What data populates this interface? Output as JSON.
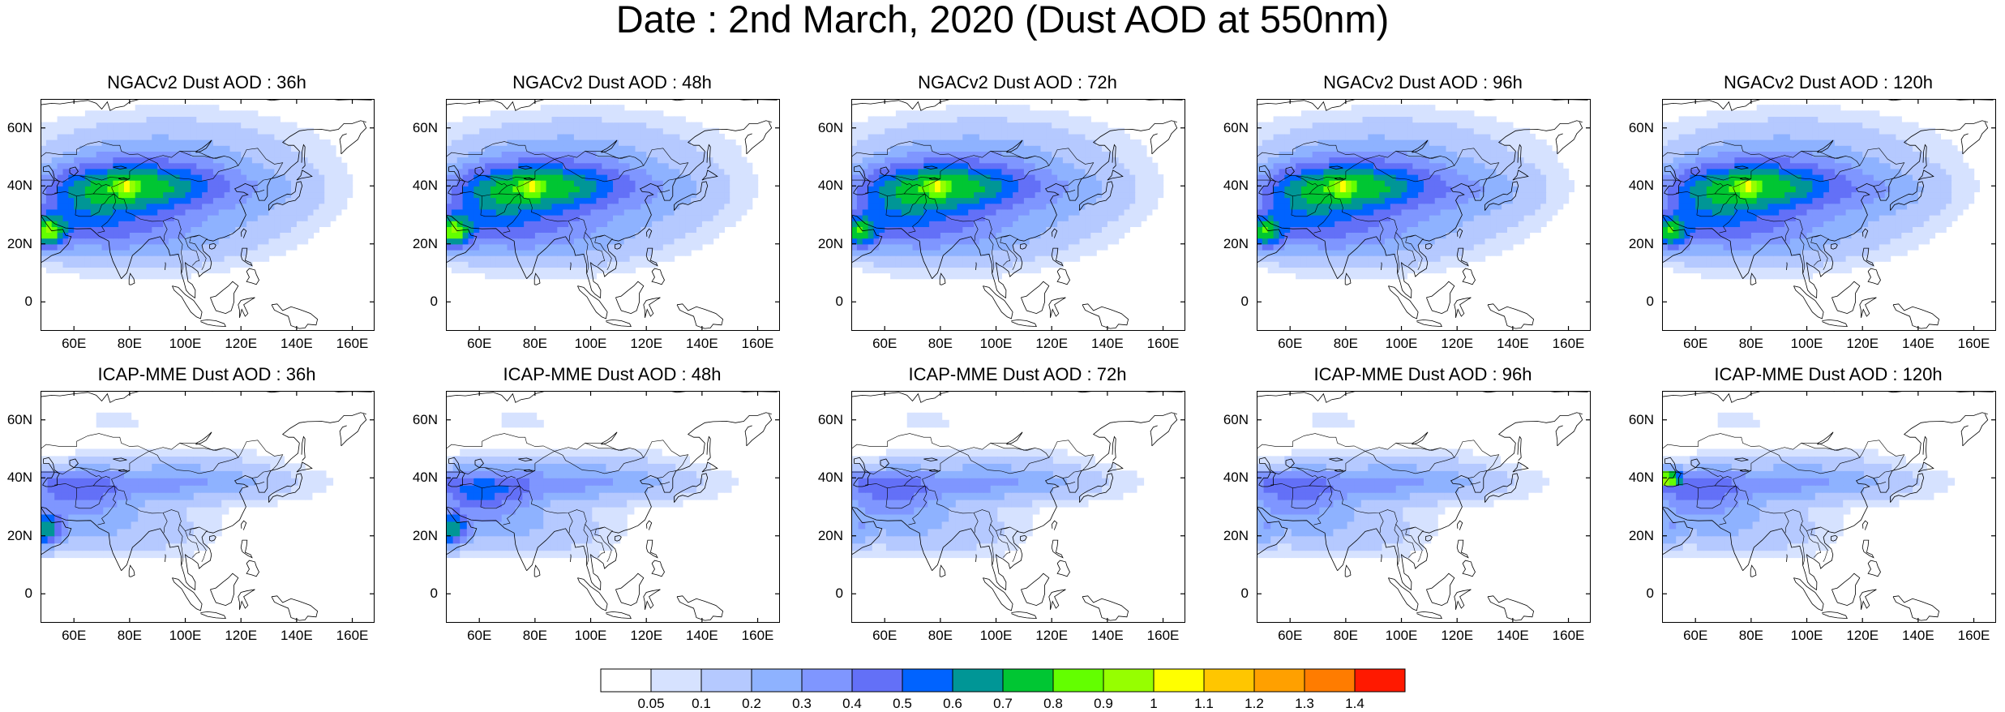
{
  "title": "Date : 2nd March, 2020 (Dust AOD at 550nm)",
  "panels": [
    {
      "title": "NGACv2 Dust AOD : 36h",
      "model": "NGACv2",
      "lead": "36h"
    },
    {
      "title": "NGACv2 Dust AOD : 48h",
      "model": "NGACv2",
      "lead": "48h"
    },
    {
      "title": "NGACv2 Dust AOD : 72h",
      "model": "NGACv2",
      "lead": "72h"
    },
    {
      "title": "NGACv2 Dust AOD : 96h",
      "model": "NGACv2",
      "lead": "96h"
    },
    {
      "title": "NGACv2 Dust AOD : 120h",
      "model": "NGACv2",
      "lead": "120h"
    },
    {
      "title": "ICAP-MME Dust AOD : 36h",
      "model": "ICAP-MME",
      "lead": "36h"
    },
    {
      "title": "ICAP-MME Dust AOD : 48h",
      "model": "ICAP-MME",
      "lead": "48h"
    },
    {
      "title": "ICAP-MME Dust AOD : 72h",
      "model": "ICAP-MME",
      "lead": "72h"
    },
    {
      "title": "ICAP-MME Dust AOD : 96h",
      "model": "ICAP-MME",
      "lead": "96h"
    },
    {
      "title": "ICAP-MME Dust AOD : 120h",
      "model": "ICAP-MME",
      "lead": "120h"
    }
  ],
  "axes": {
    "lat_ticks": [
      "60N",
      "40N",
      "20N",
      "0"
    ],
    "lat_values": [
      60,
      40,
      20,
      0
    ],
    "lon_ticks": [
      "60E",
      "80E",
      "100E",
      "120E",
      "140E",
      "160E"
    ],
    "lon_values": [
      60,
      80,
      100,
      120,
      140,
      160
    ],
    "lon_range": [
      48,
      168
    ],
    "lat_range": [
      -10,
      70
    ]
  },
  "colorbar": {
    "labels": [
      "0.05",
      "0.1",
      "0.2",
      "0.3",
      "0.4",
      "0.5",
      "0.6",
      "0.7",
      "0.8",
      "0.9",
      "1",
      "1.1",
      "1.2",
      "1.3",
      "1.4"
    ],
    "colors": [
      "#ffffff",
      "#d6e2ff",
      "#b5c9ff",
      "#8eb2ff",
      "#7f96ff",
      "#6370f7",
      "#0063ff",
      "#009696",
      "#00c633",
      "#63ff00",
      "#96ff00",
      "#ffff00",
      "#ffc600",
      "#ffa000",
      "#ff7c00",
      "#ff1900"
    ]
  }
}
